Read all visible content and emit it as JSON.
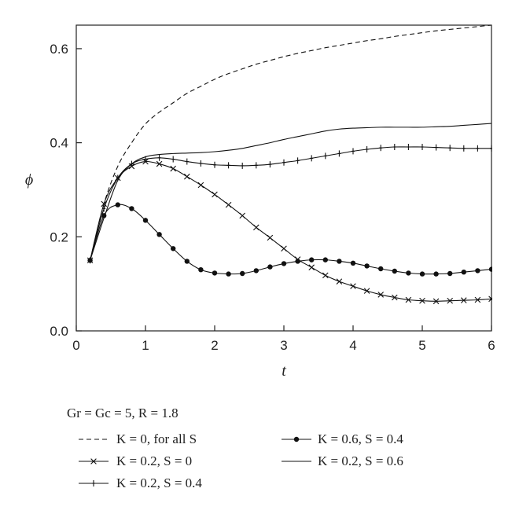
{
  "chart_data": {
    "type": "line",
    "xlabel": "t",
    "ylabel": "ϕ",
    "xlim": [
      0,
      6
    ],
    "ylim": [
      0,
      0.65
    ],
    "xticks": [
      0,
      1,
      2,
      3,
      4,
      5,
      6
    ],
    "yticks": [
      0.0,
      0.2,
      0.4,
      0.6
    ],
    "grid": false,
    "legend_title": "Gr = Gc = 5, R = 1.8",
    "legend_placement": "below",
    "series": [
      {
        "name": "K = 0, for all S",
        "style": "dashed",
        "x": [
          0.2,
          0.4,
          0.6,
          0.8,
          1.0,
          1.2,
          1.4,
          1.6,
          1.8,
          2.0,
          2.2,
          2.4,
          2.6,
          2.8,
          3.0,
          3.2,
          3.4,
          3.6,
          3.8,
          4.0,
          4.2,
          4.4,
          4.6,
          4.8,
          5.0,
          5.2,
          5.4,
          5.6,
          5.8,
          6.0
        ],
        "y": [
          0.15,
          0.27,
          0.35,
          0.4,
          0.44,
          0.465,
          0.485,
          0.505,
          0.52,
          0.535,
          0.547,
          0.557,
          0.567,
          0.575,
          0.583,
          0.59,
          0.596,
          0.602,
          0.607,
          0.612,
          0.617,
          0.621,
          0.626,
          0.63,
          0.634,
          0.638,
          0.641,
          0.644,
          0.647,
          0.65
        ]
      },
      {
        "name": "K = 0.2, S = 0",
        "style": "cross",
        "x": [
          0.2,
          0.4,
          0.6,
          0.8,
          1.0,
          1.2,
          1.4,
          1.6,
          1.8,
          2.0,
          2.2,
          2.4,
          2.6,
          2.8,
          3.0,
          3.2,
          3.4,
          3.6,
          3.8,
          4.0,
          4.2,
          4.4,
          4.6,
          4.8,
          5.0,
          5.2,
          5.4,
          5.6,
          5.8,
          6.0
        ],
        "y": [
          0.15,
          0.27,
          0.325,
          0.35,
          0.36,
          0.355,
          0.345,
          0.328,
          0.31,
          0.29,
          0.268,
          0.245,
          0.22,
          0.198,
          0.175,
          0.152,
          0.135,
          0.118,
          0.105,
          0.095,
          0.085,
          0.077,
          0.071,
          0.066,
          0.064,
          0.063,
          0.064,
          0.065,
          0.066,
          0.068
        ]
      },
      {
        "name": "K = 0.2, S = 0.4",
        "style": "plus",
        "x": [
          0.2,
          0.4,
          0.6,
          0.8,
          1.0,
          1.2,
          1.4,
          1.6,
          1.8,
          2.0,
          2.2,
          2.4,
          2.6,
          2.8,
          3.0,
          3.2,
          3.4,
          3.6,
          3.8,
          4.0,
          4.2,
          4.4,
          4.6,
          4.8,
          5.0,
          5.2,
          5.4,
          5.6,
          5.8,
          6.0
        ],
        "y": [
          0.15,
          0.26,
          0.325,
          0.355,
          0.365,
          0.368,
          0.365,
          0.36,
          0.356,
          0.353,
          0.352,
          0.351,
          0.352,
          0.354,
          0.358,
          0.362,
          0.367,
          0.372,
          0.377,
          0.382,
          0.386,
          0.389,
          0.391,
          0.391,
          0.391,
          0.39,
          0.389,
          0.388,
          0.388,
          0.388
        ]
      },
      {
        "name": "K = 0.6, S = 0.4",
        "style": "dot",
        "x": [
          0.2,
          0.4,
          0.6,
          0.8,
          1.0,
          1.2,
          1.4,
          1.6,
          1.8,
          2.0,
          2.2,
          2.4,
          2.6,
          2.8,
          3.0,
          3.2,
          3.4,
          3.6,
          3.8,
          4.0,
          4.2,
          4.4,
          4.6,
          4.8,
          5.0,
          5.2,
          5.4,
          5.6,
          5.8,
          6.0
        ],
        "y": [
          0.15,
          0.245,
          0.268,
          0.26,
          0.235,
          0.205,
          0.175,
          0.148,
          0.13,
          0.123,
          0.121,
          0.122,
          0.128,
          0.136,
          0.143,
          0.148,
          0.151,
          0.151,
          0.148,
          0.144,
          0.138,
          0.132,
          0.127,
          0.123,
          0.121,
          0.121,
          0.122,
          0.125,
          0.128,
          0.131
        ]
      },
      {
        "name": "K = 0.2, S = 0.6",
        "style": "solid",
        "x": [
          0.2,
          0.4,
          0.6,
          0.8,
          1.0,
          1.2,
          1.4,
          1.6,
          1.8,
          2.0,
          2.2,
          2.4,
          2.6,
          2.8,
          3.0,
          3.2,
          3.4,
          3.6,
          3.8,
          4.0,
          4.2,
          4.4,
          4.6,
          4.8,
          5.0,
          5.2,
          5.4,
          5.6,
          5.8,
          6.0
        ],
        "y": [
          0.15,
          0.24,
          0.32,
          0.355,
          0.37,
          0.375,
          0.377,
          0.378,
          0.379,
          0.381,
          0.384,
          0.388,
          0.394,
          0.4,
          0.407,
          0.413,
          0.419,
          0.425,
          0.429,
          0.431,
          0.432,
          0.433,
          0.433,
          0.433,
          0.433,
          0.434,
          0.435,
          0.437,
          0.439,
          0.441
        ]
      }
    ]
  }
}
